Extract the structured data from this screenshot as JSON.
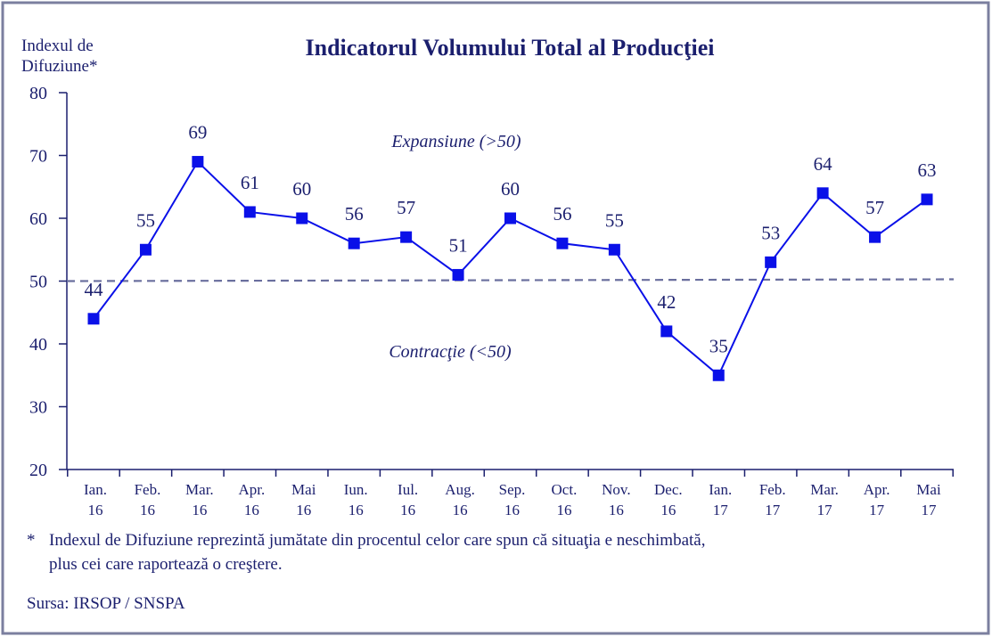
{
  "chart_data": {
    "type": "line",
    "title": "Indicatorul Volumului Total al Producţiei",
    "ylabel_line1": "Indexul de",
    "ylabel_line2": "Difuziune*",
    "ylim": [
      20,
      80
    ],
    "yticks": [
      20,
      30,
      40,
      50,
      60,
      70,
      80
    ],
    "categories": [
      [
        "Ian.",
        "16"
      ],
      [
        "Feb.",
        "16"
      ],
      [
        "Mar.",
        "16"
      ],
      [
        "Apr.",
        "16"
      ],
      [
        "Mai",
        "16"
      ],
      [
        "Iun.",
        "16"
      ],
      [
        "Iul.",
        "16"
      ],
      [
        "Aug.",
        "16"
      ],
      [
        "Sep.",
        "16"
      ],
      [
        "Oct.",
        "16"
      ],
      [
        "Nov.",
        "16"
      ],
      [
        "Dec.",
        "16"
      ],
      [
        "Ian.",
        "17"
      ],
      [
        "Feb.",
        "17"
      ],
      [
        "Mar.",
        "17"
      ],
      [
        "Apr.",
        "17"
      ],
      [
        "Mai",
        "17"
      ]
    ],
    "series": [
      {
        "values": [
          44,
          55,
          69,
          61,
          60,
          56,
          57,
          51,
          60,
          56,
          55,
          42,
          35,
          53,
          64,
          57,
          63
        ]
      }
    ],
    "reference_line": 50,
    "annotations": {
      "expansion": "Expansiune (>50)",
      "contraction": "Contracţie (<50)"
    },
    "colors": {
      "line": "#0a10e8",
      "text": "#1b1f6e",
      "reference": "#6a6f9e",
      "frame": "#7b7f9f",
      "axis": "#1b1f6e"
    },
    "grid": false,
    "legend": "none"
  },
  "footnote": {
    "marker": "*",
    "line1": "Indexul de Difuziune reprezintă jumătate din procentul celor care spun că situaţia e neschimbată,",
    "line2": "plus cei care raportează o creştere."
  },
  "source": "Sursa: IRSOP / SNSPA"
}
